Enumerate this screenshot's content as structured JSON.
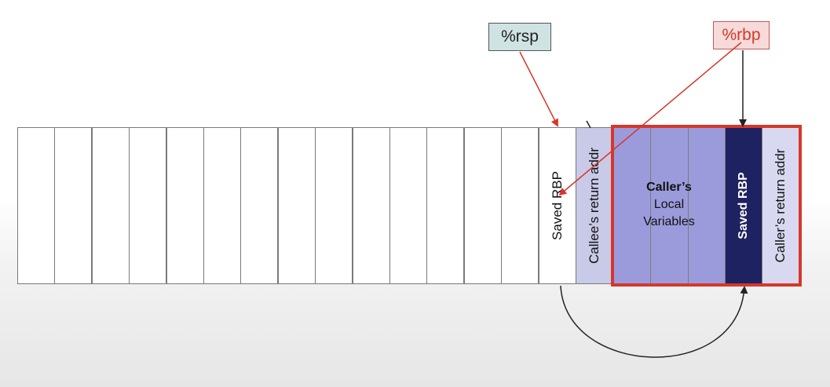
{
  "labels": {
    "rsp": "%rsp",
    "rbp": "%rbp"
  },
  "stack": {
    "empty_slots": 14,
    "saved_rbp": "Saved RBP",
    "callee_return_addr": "Callee’s return addr",
    "caller_locals_title": "Caller’s",
    "caller_locals_line2": "Local",
    "caller_locals_line3": "Variables",
    "caller_saved_rbp": "Saved RBP",
    "caller_return_addr": "Caller’s return addr"
  },
  "colors": {
    "rsp_box_fill": "#cfe3e3",
    "rbp_box_fill": "#f7dada",
    "rbp_text": "#d23a2a",
    "callee_return_fill": "#c9c9e8",
    "caller_locals_fill": "#9b9bdc",
    "saved_rbp_dark_fill": "#1f2260",
    "caller_return_fill": "#d8d8f0",
    "frame_border": "#d6372a",
    "arrow_red": "#d6372a"
  }
}
